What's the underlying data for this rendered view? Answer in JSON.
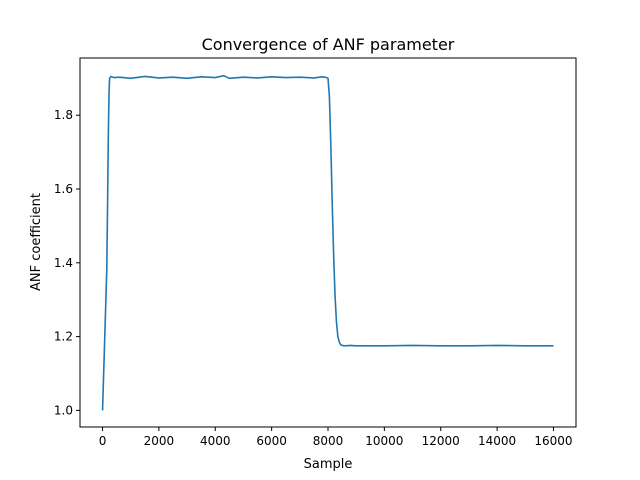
{
  "chart_data": {
    "type": "line",
    "title": "Convergence of ANF parameter",
    "xlabel": "Sample",
    "ylabel": "ANF coefficient",
    "xlim": [
      -800,
      16800
    ],
    "ylim": [
      0.955,
      1.955
    ],
    "xticks": [
      0,
      2000,
      4000,
      6000,
      8000,
      10000,
      12000,
      14000,
      16000
    ],
    "yticks": [
      1.0,
      1.2,
      1.4,
      1.6,
      1.8
    ],
    "ytick_labels": [
      "1.0",
      "1.2",
      "1.4",
      "1.6",
      "1.8"
    ],
    "grid": false,
    "legend": "none",
    "series": [
      {
        "color": "#1f77b4",
        "x": [
          0,
          150,
          180,
          200,
          210,
          230,
          250,
          300,
          400,
          600,
          1000,
          1500,
          2000,
          2500,
          3000,
          3500,
          4000,
          4300,
          4500,
          5000,
          5500,
          6000,
          6500,
          7000,
          7500,
          7800,
          7950,
          8000,
          8050,
          8100,
          8150,
          8200,
          8250,
          8300,
          8350,
          8400,
          8450,
          8500,
          8600,
          8800,
          9000,
          10000,
          11000,
          12000,
          13000,
          14000,
          15000,
          16000
        ],
        "y": [
          1.0,
          1.38,
          1.57,
          1.71,
          1.77,
          1.86,
          1.9,
          1.905,
          1.902,
          1.903,
          1.9,
          1.905,
          1.901,
          1.903,
          1.9,
          1.904,
          1.902,
          1.907,
          1.9,
          1.903,
          1.901,
          1.904,
          1.902,
          1.903,
          1.901,
          1.904,
          1.902,
          1.9,
          1.85,
          1.72,
          1.56,
          1.42,
          1.31,
          1.24,
          1.2,
          1.185,
          1.178,
          1.176,
          1.175,
          1.176,
          1.175,
          1.175,
          1.176,
          1.175,
          1.175,
          1.176,
          1.175,
          1.175
        ]
      }
    ]
  }
}
